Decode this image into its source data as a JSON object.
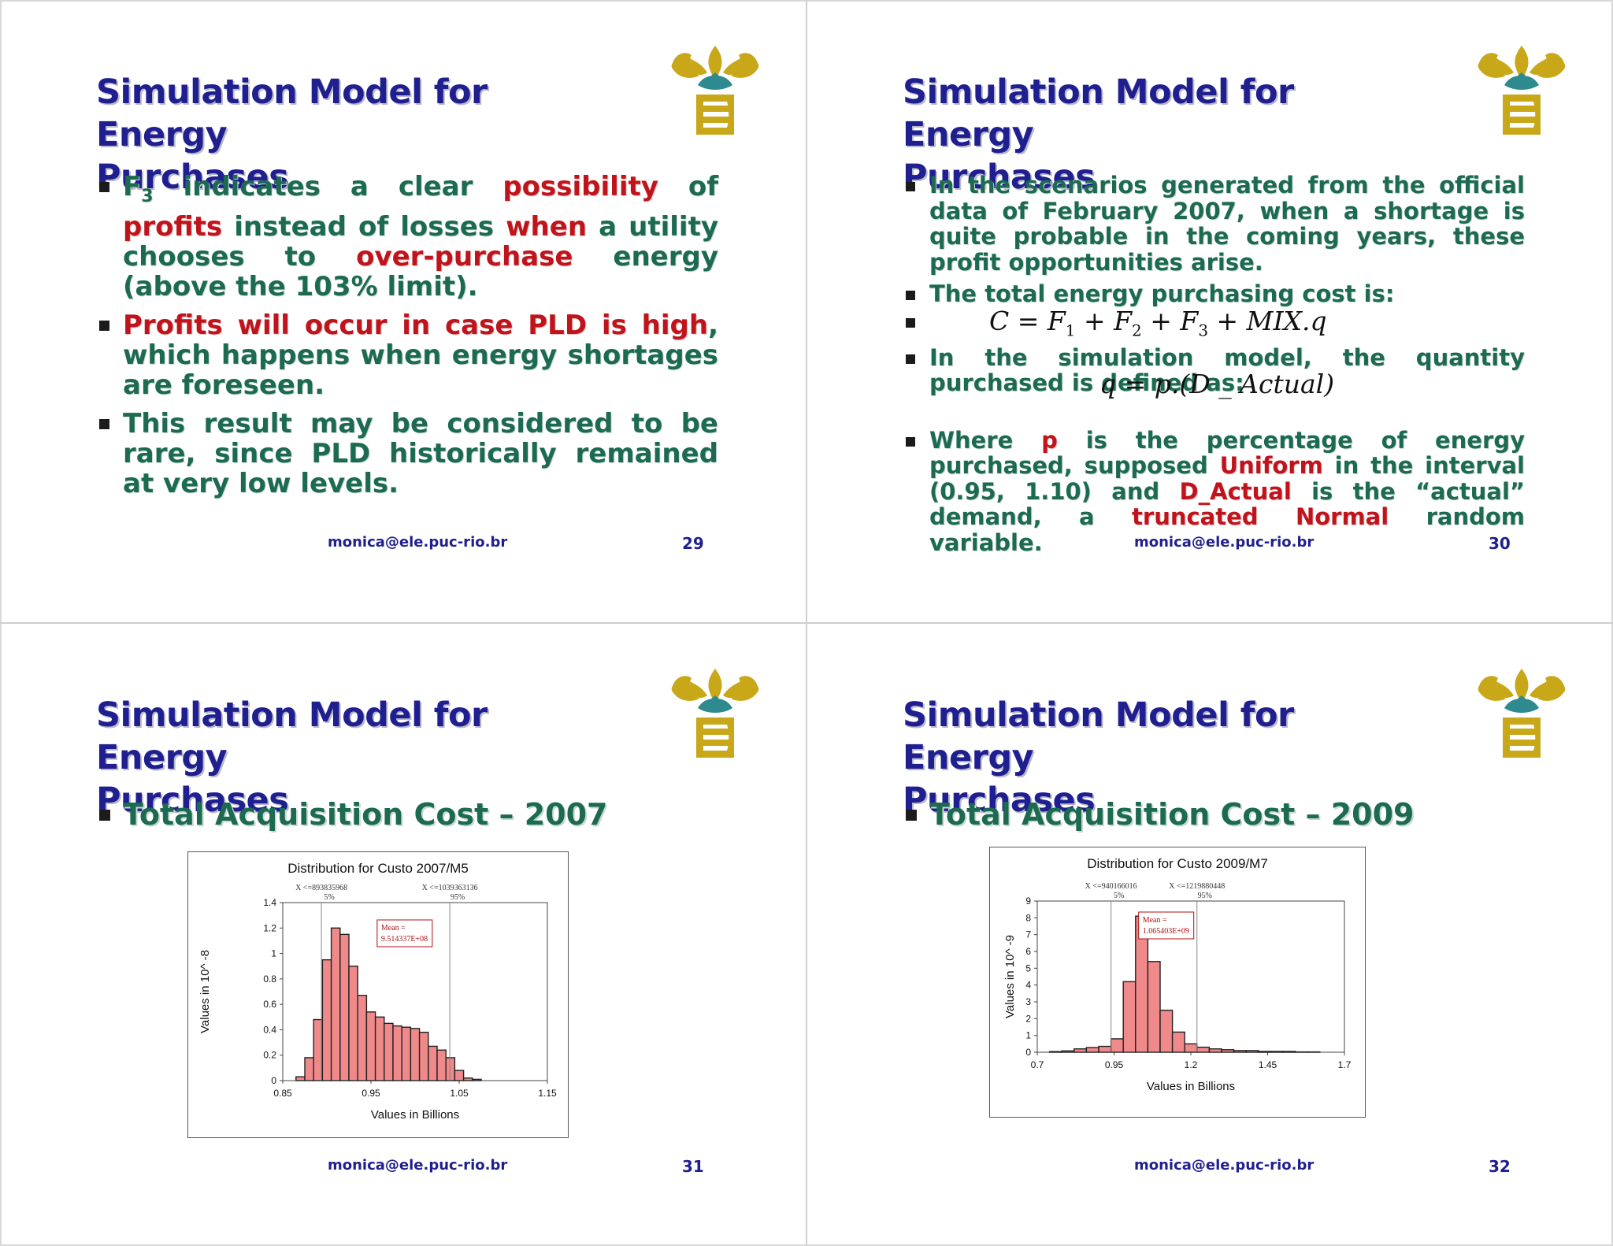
{
  "slides": [
    {
      "title_line1": "Simulation Model for Energy",
      "title_line2": "Purchases",
      "bullet1": {
        "p1": "F",
        "sub": "3",
        "p2": " indicates a clear ",
        "r1": "possibility",
        "p3": " of ",
        "r2": "profits",
        "p4": " instead of losses ",
        "r3": "when",
        "p5": " a utility chooses to ",
        "r4": "over-purchase",
        "p6": " energy (above the 103% limit)."
      },
      "bullet2": {
        "r1": "Profits will occur in case PLD is high",
        "p1": ", which happens when energy shortages are foreseen."
      },
      "bullet3": "This result may be considered to be rare, since PLD historically remained at very low levels.",
      "email": "monica@ele.puc-rio.br",
      "page": "29"
    },
    {
      "title_line1": "Simulation Model for Energy",
      "title_line2": "Purchases",
      "bullet1": "In the scenarios generated from the official data of February 2007, when a shortage is quite probable in the coming years, these profit opportunities arise.",
      "bullet2": "The total energy purchasing cost is:",
      "formula1": {
        "a": "C = F",
        "s1": "1",
        "b": " + F",
        "s2": "2",
        "c": " + F",
        "s3": "3",
        "d": " + MIX.q"
      },
      "bullet3": "In the simulation model, the quantity purchased is defined as:",
      "formula2": "q = p.(D _ Actual)",
      "bullet4": {
        "p1": "Where ",
        "r1": "p",
        "p2": " is the percentage of energy purchased, supposed ",
        "r2": "Uniform",
        "p3": " in the interval (0.95, 1.10) and ",
        "r3": "D_Actual",
        "p4": " is the “actual” demand, a ",
        "r4": "truncated Normal",
        "p5": " random variable."
      },
      "email": "monica@ele.puc-rio.br",
      "page": "30"
    },
    {
      "title_line1": "Simulation Model for Energy",
      "title_line2": "Purchases",
      "bullet": "Total Acquisition Cost – 2007",
      "email": "monica@ele.puc-rio.br",
      "page": "31"
    },
    {
      "title_line1": "Simulation Model for Energy",
      "title_line2": "Purchases",
      "bullet": "Total Acquisition Cost – 2009",
      "email": "monica@ele.puc-rio.br",
      "page": "32"
    }
  ],
  "chart_data": [
    {
      "type": "bar",
      "title": "Distribution for Custo 2007/M5",
      "xlabel": "Values in Billions",
      "ylabel": "Values in 10^ -8",
      "xlim": [
        0.85,
        1.15
      ],
      "ylim": [
        0,
        1.4
      ],
      "x_ticks": [
        "0.85",
        "0.95",
        "1.05",
        "1.15"
      ],
      "y_ticks": [
        "0",
        "0.2",
        "0.4",
        "0.6",
        "0.8",
        "1",
        "1.2",
        "1.4"
      ],
      "bin_start": 0.865,
      "bin_width": 0.01,
      "values": [
        0.03,
        0.18,
        0.48,
        0.95,
        1.2,
        1.15,
        0.9,
        0.67,
        0.54,
        0.5,
        0.45,
        0.43,
        0.42,
        0.41,
        0.38,
        0.27,
        0.24,
        0.18,
        0.08,
        0.02,
        0.01
      ],
      "markers": [
        {
          "label": "X <=893835968",
          "pct": "5%",
          "x": 0.893836
        },
        {
          "label": "X <=1039363136",
          "pct": "95%",
          "x": 1.039363
        }
      ],
      "mean_label": "Mean =",
      "mean_value": "9.514337E+08",
      "bar_color": "#f08a8a"
    },
    {
      "type": "bar",
      "title": "Distribution for Custo 2009/M7",
      "xlabel": "Values in Billions",
      "ylabel": "Values in 10^ -9",
      "xlim": [
        0.7,
        1.7
      ],
      "ylim": [
        0,
        9
      ],
      "x_ticks": [
        "0.7",
        "0.95",
        "1.2",
        "1.45",
        "1.7"
      ],
      "y_ticks": [
        "0",
        "1",
        "2",
        "3",
        "4",
        "5",
        "6",
        "7",
        "8",
        "9"
      ],
      "bin_start": 0.74,
      "bin_width": 0.04,
      "values": [
        0.04,
        0.08,
        0.2,
        0.28,
        0.35,
        0.8,
        4.2,
        8.1,
        5.4,
        2.5,
        1.2,
        0.5,
        0.3,
        0.2,
        0.15,
        0.1,
        0.1,
        0.05,
        0.05,
        0.05,
        0.02,
        0.02
      ],
      "markers": [
        {
          "label": "X <=940166016",
          "pct": "5%",
          "x": 0.940166
        },
        {
          "label": "X <=1219880448",
          "pct": "95%",
          "x": 1.21988
        }
      ],
      "mean_label": "Mean =",
      "mean_value": "1.065403E+09",
      "bar_color": "#f08a8a"
    }
  ]
}
